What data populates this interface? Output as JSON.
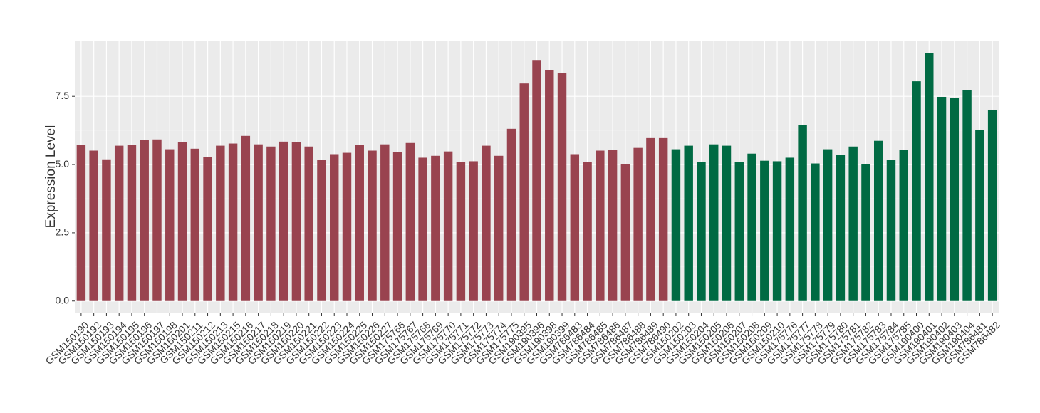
{
  "chart_data": {
    "type": "bar",
    "y_label": "Expression Level",
    "categories": [
      "GSM150190",
      "GSM150192",
      "GSM150193",
      "GSM150194",
      "GSM150195",
      "GSM150196",
      "GSM150197",
      "GSM150198",
      "GSM150201",
      "GSM150211",
      "GSM150212",
      "GSM150213",
      "GSM150215",
      "GSM150216",
      "GSM150217",
      "GSM150218",
      "GSM150219",
      "GSM150220",
      "GSM150221",
      "GSM150222",
      "GSM150223",
      "GSM150224",
      "GSM150225",
      "GSM150226",
      "GSM150227",
      "GSM175766",
      "GSM175767",
      "GSM175768",
      "GSM175769",
      "GSM175770",
      "GSM175771",
      "GSM175772",
      "GSM175773",
      "GSM175774",
      "GSM175775",
      "GSM190395",
      "GSM190396",
      "GSM190398",
      "GSM190399",
      "GSM786483",
      "GSM786484",
      "GSM786485",
      "GSM786486",
      "GSM786487",
      "GSM786488",
      "GSM786489",
      "GSM786490",
      "GSM150202",
      "GSM150203",
      "GSM150204",
      "GSM150205",
      "GSM150206",
      "GSM150207",
      "GSM150208",
      "GSM150209",
      "GSM150210",
      "GSM175776",
      "GSM175777",
      "GSM175778",
      "GSM175779",
      "GSM175780",
      "GSM175781",
      "GSM175782",
      "GSM175783",
      "GSM175784",
      "GSM175785",
      "GSM190400",
      "GSM190401",
      "GSM190402",
      "GSM190403",
      "GSM190404",
      "GSM786481",
      "GSM786482"
    ],
    "values": [
      5.71,
      5.51,
      5.19,
      5.69,
      5.71,
      5.9,
      5.92,
      5.56,
      5.82,
      5.58,
      5.27,
      5.69,
      5.77,
      6.05,
      5.74,
      5.66,
      5.84,
      5.82,
      5.66,
      5.17,
      5.38,
      5.43,
      5.71,
      5.51,
      5.74,
      5.45,
      5.79,
      5.25,
      5.32,
      5.48,
      5.09,
      5.12,
      5.69,
      5.32,
      6.31,
      7.97,
      8.83,
      8.47,
      8.34,
      5.38,
      5.09,
      5.51,
      5.53,
      5.01,
      5.61,
      5.97,
      5.97,
      5.56,
      5.69,
      5.09,
      5.74,
      5.69,
      5.09,
      5.4,
      5.14,
      5.12,
      5.25,
      6.44,
      5.04,
      5.56,
      5.35,
      5.66,
      5.01,
      5.87,
      5.17,
      5.53,
      8.05,
      9.09,
      7.48,
      7.43,
      7.74,
      6.26,
      7.01
    ],
    "colors": [
      "#99434f",
      "#99434f",
      "#99434f",
      "#99434f",
      "#99434f",
      "#99434f",
      "#99434f",
      "#99434f",
      "#99434f",
      "#99434f",
      "#99434f",
      "#99434f",
      "#99434f",
      "#99434f",
      "#99434f",
      "#99434f",
      "#99434f",
      "#99434f",
      "#99434f",
      "#99434f",
      "#99434f",
      "#99434f",
      "#99434f",
      "#99434f",
      "#99434f",
      "#99434f",
      "#99434f",
      "#99434f",
      "#99434f",
      "#99434f",
      "#99434f",
      "#99434f",
      "#99434f",
      "#99434f",
      "#99434f",
      "#99434f",
      "#99434f",
      "#99434f",
      "#99434f",
      "#99434f",
      "#99434f",
      "#99434f",
      "#99434f",
      "#99434f",
      "#99434f",
      "#99434f",
      "#99434f",
      "#006a43",
      "#006a43",
      "#006a43",
      "#006a43",
      "#006a43",
      "#006a43",
      "#006a43",
      "#006a43",
      "#006a43",
      "#006a43",
      "#006a43",
      "#006a43",
      "#006a43",
      "#006a43",
      "#006a43",
      "#006a43",
      "#006a43",
      "#006a43",
      "#006a43",
      "#006a43",
      "#006a43",
      "#006a43",
      "#006a43",
      "#006a43",
      "#006a43",
      "#006a43"
    ],
    "ylim": [
      -0.45,
      9.54
    ],
    "yticks": [
      {
        "value": 0,
        "label": "0.0"
      },
      {
        "value": 2.5,
        "label": "2.5"
      },
      {
        "value": 5,
        "label": "5.0"
      },
      {
        "value": 7.5,
        "label": "7.5"
      }
    ],
    "grid": true
  }
}
